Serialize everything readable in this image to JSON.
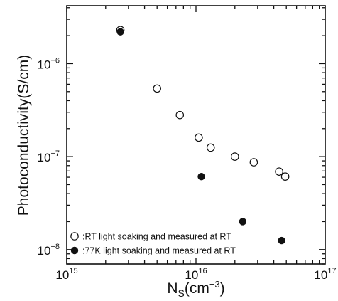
{
  "chart_data": {
    "type": "scatter",
    "x_scale": "log",
    "y_scale": "log",
    "xlim": [
      1000000000000000.0,
      1e+17
    ],
    "ylim": [
      7e-09,
      4.2e-06
    ],
    "xlabel": {
      "base": "N",
      "sub": "S",
      "rest": "(cm",
      "sup": "−3",
      "close": ")"
    },
    "ylabel": "Photoconductivity(S/cm)",
    "x_ticks": [
      {
        "value": 1000000000000000.0,
        "base": "10",
        "exp": "15"
      },
      {
        "value": 1e+16,
        "base": "10",
        "exp": "16"
      },
      {
        "value": 1e+17,
        "base": "10",
        "exp": "17"
      }
    ],
    "y_ticks": [
      {
        "value": 1e-08,
        "base": "10",
        "exp": "−8"
      },
      {
        "value": 1e-07,
        "base": "10",
        "exp": "−7"
      },
      {
        "value": 1e-06,
        "base": "10",
        "exp": "−6"
      }
    ],
    "grid": false,
    "legend_position": "bottom-left",
    "series": [
      {
        "name": ":RT light soaking and measured at RT",
        "marker": "open-circle",
        "color": "#111111",
        "points": [
          {
            "x": 2600000000000000.0,
            "y": 2.3e-06
          },
          {
            "x": 5000000000000000.0,
            "y": 5.4e-07
          },
          {
            "x": 7500000000000000.0,
            "y": 2.8e-07
          },
          {
            "x": 1.05e+16,
            "y": 1.6e-07
          },
          {
            "x": 1.3e+16,
            "y": 1.25e-07
          },
          {
            "x": 2e+16,
            "y": 1e-07
          },
          {
            "x": 2.8e+16,
            "y": 8.7e-08
          },
          {
            "x": 4.4e+16,
            "y": 6.9e-08
          },
          {
            "x": 4.9e+16,
            "y": 6.1e-08
          }
        ]
      },
      {
        "name": ":77K light soaking and measured at RT",
        "marker": "filled-circle",
        "color": "#111111",
        "points": [
          {
            "x": 2600000000000000.0,
            "y": 2.2e-06
          },
          {
            "x": 1.1e+16,
            "y": 6.1e-08
          },
          {
            "x": 2.3e+16,
            "y": 2e-08
          },
          {
            "x": 4.6e+16,
            "y": 1.25e-08
          }
        ]
      }
    ]
  }
}
